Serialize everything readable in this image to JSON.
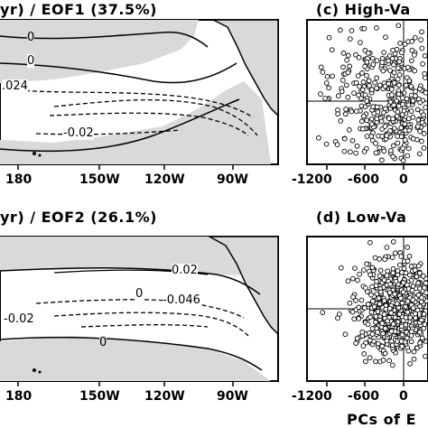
{
  "top": {
    "map_title": "yr) / EOF1 (37.5%)",
    "scatter_title": "(c) High-Va",
    "lon_ticks": [
      "180",
      "150W",
      "120W",
      "90W"
    ],
    "contour_labels": [
      "0",
      "0",
      ".024",
      "-0.02"
    ],
    "pc_ticks": [
      "-1200",
      "-600",
      "0"
    ]
  },
  "bottom": {
    "map_title": "yr) / EOF2 (26.1%)",
    "scatter_title": "(d) Low-Va",
    "lon_ticks": [
      "180",
      "150W",
      "120W",
      "90W"
    ],
    "contour_labels": [
      "0.02",
      "0",
      "-0.046",
      "0",
      "-0.02"
    ],
    "pc_ticks": [
      "-1200",
      "-600",
      "0"
    ]
  },
  "xaxis_title": "PCs of E",
  "colors": {
    "land_shade": "#d9d9d9",
    "ocean": "#ffffff",
    "ink": "#000000"
  }
}
